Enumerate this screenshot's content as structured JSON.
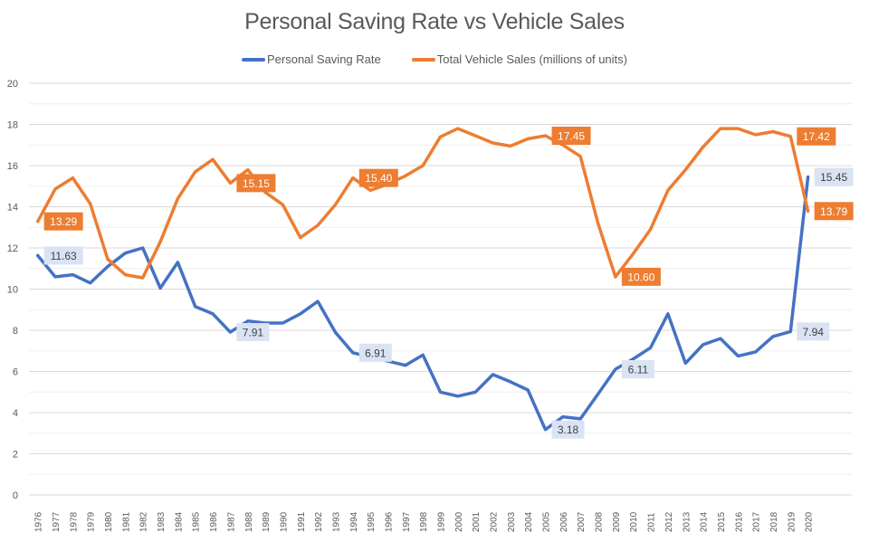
{
  "chart_data": {
    "type": "line",
    "title": "Personal Saving Rate vs Vehicle Sales",
    "xlabel": "",
    "ylabel": "",
    "ylim": [
      0,
      20
    ],
    "yticks": [
      0,
      2,
      4,
      6,
      8,
      10,
      12,
      14,
      16,
      18,
      20
    ],
    "grid": "horizontal major and minor",
    "legend_position": "top",
    "categories": [
      "1976",
      "1977",
      "1978",
      "1979",
      "1980",
      "1981",
      "1982",
      "1983",
      "1984",
      "1985",
      "1986",
      "1987",
      "1988",
      "1989",
      "1990",
      "1991",
      "1992",
      "1993",
      "1994",
      "1995",
      "1996",
      "1997",
      "1998",
      "1999",
      "2000",
      "2001",
      "2002",
      "2003",
      "2004",
      "2005",
      "2006",
      "2007",
      "2008",
      "2009",
      "2010",
      "2011",
      "2012",
      "2013",
      "2014",
      "2015",
      "2016",
      "2017",
      "2018",
      "2019",
      "2020"
    ],
    "series": [
      {
        "name": "Personal Saving Rate",
        "color": "#4472C4",
        "label_bg": "#DAE3F3",
        "label_fg": "#404040",
        "values": [
          11.63,
          10.6,
          10.7,
          10.3,
          11.1,
          11.75,
          12.0,
          10.05,
          11.3,
          9.15,
          8.8,
          7.91,
          8.45,
          8.35,
          8.35,
          8.8,
          9.4,
          7.9,
          6.91,
          6.7,
          6.5,
          6.3,
          6.8,
          5.0,
          4.8,
          5.0,
          5.85,
          5.5,
          5.1,
          3.18,
          3.8,
          3.7,
          4.9,
          6.11,
          6.6,
          7.15,
          8.8,
          6.4,
          7.3,
          7.6,
          6.75,
          6.95,
          7.7,
          7.94,
          15.45
        ],
        "data_labels": [
          {
            "index": 0,
            "text": "11.63"
          },
          {
            "index": 11,
            "text": "7.91"
          },
          {
            "index": 18,
            "text": "6.91"
          },
          {
            "index": 29,
            "text": "3.18"
          },
          {
            "index": 33,
            "text": "6.11"
          },
          {
            "index": 43,
            "text": "7.94"
          },
          {
            "index": 44,
            "text": "15.45"
          }
        ]
      },
      {
        "name": "Total Vehicle Sales (millions of units)",
        "color": "#ED7D31",
        "label_bg": "#ED7D31",
        "label_fg": "#FFFFFF",
        "values": [
          13.29,
          14.86,
          15.4,
          14.15,
          11.45,
          10.7,
          10.55,
          12.3,
          14.4,
          15.7,
          16.3,
          15.15,
          15.8,
          14.7,
          14.1,
          12.5,
          13.1,
          14.1,
          15.4,
          14.8,
          15.1,
          15.5,
          16.0,
          17.4,
          17.8,
          17.45,
          17.1,
          16.95,
          17.3,
          17.45,
          17.0,
          16.45,
          13.2,
          10.6,
          11.7,
          12.9,
          14.8,
          15.8,
          16.9,
          17.8,
          17.8,
          17.5,
          17.65,
          17.42,
          13.79
        ],
        "data_labels": [
          {
            "index": 0,
            "text": "13.29"
          },
          {
            "index": 11,
            "text": "15.15"
          },
          {
            "index": 18,
            "text": "15.40"
          },
          {
            "index": 29,
            "text": "17.45"
          },
          {
            "index": 33,
            "text": "10.60"
          },
          {
            "index": 43,
            "text": "17.42"
          },
          {
            "index": 44,
            "text": "13.79"
          }
        ]
      }
    ]
  }
}
